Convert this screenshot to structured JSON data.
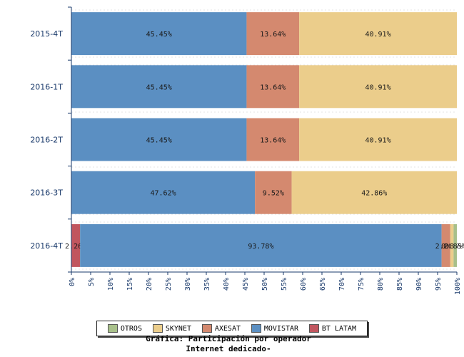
{
  "chart_data": {
    "type": "bar",
    "orientation": "horizontal",
    "stacked": true,
    "percent_scale": true,
    "categories": [
      "2015-4T",
      "2016-1T",
      "2016-2T",
      "2016-3T",
      "2016-4T"
    ],
    "series": [
      {
        "name": "BT LATAM",
        "color": "#c1565f",
        "values": [
          0,
          0,
          0,
          0,
          2.26
        ],
        "labels": [
          "",
          "",
          "",
          "",
          "2.26%"
        ]
      },
      {
        "name": "MOVISTAR",
        "color": "#5b8fc2",
        "values": [
          45.45,
          45.45,
          45.45,
          47.62,
          93.78
        ],
        "labels": [
          "45.45%",
          "45.45%",
          "45.45%",
          "47.62%",
          "93.78%"
        ]
      },
      {
        "name": "AXESAT",
        "color": "#d4896f",
        "values": [
          13.64,
          13.64,
          13.64,
          9.52,
          2.26
        ],
        "labels": [
          "13.64%",
          "13.64%",
          "13.64%",
          "9.52%",
          "2.26%"
        ]
      },
      {
        "name": "SKYNET",
        "color": "#ebcd8b",
        "values": [
          40.91,
          40.91,
          40.91,
          42.86,
          0.85
        ],
        "labels": [
          "40.91%",
          "40.91%",
          "40.91%",
          "42.86%",
          "0.85%"
        ]
      },
      {
        "name": "OTROS",
        "color": "#a8c08a",
        "values": [
          0,
          0,
          0,
          0,
          0.85
        ],
        "labels": [
          "",
          "",
          "",
          "",
          "0.85%"
        ]
      }
    ],
    "xlim": [
      0,
      100
    ],
    "x_ticks": [
      "0%",
      "5%",
      "10%",
      "15%",
      "20%",
      "25%",
      "30%",
      "35%",
      "40%",
      "45%",
      "50%",
      "55%",
      "60%",
      "65%",
      "70%",
      "75%",
      "80%",
      "85%",
      "90%",
      "95%",
      "100%"
    ],
    "legend_order": [
      "OTROS",
      "SKYNET",
      "AXESAT",
      "MOVISTAR",
      "BT LATAM"
    ],
    "legend_position": "bottom",
    "grid": true
  },
  "caption": {
    "line1": "Gráfica: Participación por operador",
    "line2": "Internet dedicado-"
  }
}
